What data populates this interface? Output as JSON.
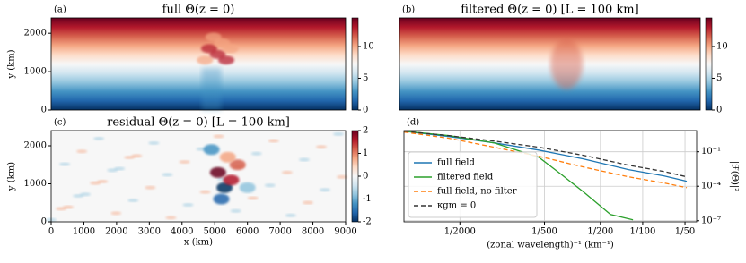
{
  "chart_data": [
    {
      "type": "heatmap",
      "panel": "(a)",
      "title": "full Θ(z = 0)",
      "ylabel": "y (km)",
      "xlim": [
        0,
        9000
      ],
      "ylim": [
        0,
        2400
      ],
      "yticks": [
        0,
        1000,
        2000
      ],
      "clim": [
        0,
        14.5
      ],
      "cticks": [
        0,
        5,
        10
      ]
    },
    {
      "type": "heatmap",
      "panel": "(b)",
      "title": "filtered Θ(z = 0) [L = 100 km]",
      "xlim": [
        0,
        9000
      ],
      "ylim": [
        0,
        2400
      ],
      "clim": [
        0,
        14.5
      ],
      "cticks": [
        0,
        5,
        10
      ]
    },
    {
      "type": "heatmap",
      "panel": "(c)",
      "title": "residual Θ(z = 0) [L = 100 km]",
      "ylabel": "y (km)",
      "xlabel": "x (km)",
      "xlim": [
        0,
        9000
      ],
      "ylim": [
        0,
        2400
      ],
      "yticks": [
        0,
        1000,
        2000
      ],
      "xticks": [
        0,
        1000,
        2000,
        3000,
        4000,
        5000,
        6000,
        7000,
        8000,
        9000
      ],
      "clim": [
        -2,
        2
      ],
      "cticks": [
        -2,
        -1,
        0,
        1,
        2
      ]
    },
    {
      "type": "line",
      "panel": "(d)",
      "xlabel": "(zonal wavelength)⁻¹ (km⁻¹)",
      "ylabel": "|ℱ(Θ)|²",
      "log_x": true,
      "log_y": true,
      "grid": true,
      "legend": "lower left",
      "xlim": [
        0.0002,
        0.0242
      ],
      "ylim": [
        8e-08,
        7
      ],
      "xticks": [
        {
          "value": 0.0005,
          "label": "1/2000"
        },
        {
          "value": 0.002,
          "label": "1/500"
        },
        {
          "value": 0.005,
          "label": "1/200"
        },
        {
          "value": 0.01,
          "label": "1/100"
        },
        {
          "value": 0.02,
          "label": "1/50"
        }
      ],
      "yticks": [
        {
          "value": 1e-07,
          "label": "10⁻⁷"
        },
        {
          "value": 0.0001,
          "label": "10⁻⁴"
        },
        {
          "value": 0.1,
          "label": "10⁻¹"
        }
      ],
      "series": [
        {
          "name": "full field",
          "color": "#1f77b4",
          "dash": "solid",
          "x": [
            0.000201,
            0.000419,
            0.000875,
            0.00182,
            0.0038,
            0.00792,
            0.01426,
            0.02057
          ],
          "values": [
            6.2,
            2.1,
            0.6,
            0.14,
            0.024,
            0.0028,
            0.00079,
            0.00027
          ]
        },
        {
          "name": "filtered field",
          "color": "#2ca02c",
          "dash": "solid",
          "x": [
            0.000201,
            0.000419,
            0.000875,
            0.00182,
            0.00263,
            0.0038,
            0.0059,
            0.00853
          ],
          "values": [
            6.2,
            2.5,
            0.6,
            0.034,
            0.0011,
            3.1e-05,
            3.5e-07,
            1.2e-07
          ]
        },
        {
          "name": "full field, no filter",
          "color": "#ff7f0e",
          "dash": "dashed",
          "x": [
            0.000201,
            0.000419,
            0.000875,
            0.00182,
            0.0038,
            0.00792,
            0.01426,
            0.02057
          ],
          "values": [
            5.2,
            1.5,
            0.25,
            0.041,
            0.0047,
            0.00066,
            0.00019,
            7.6e-05
          ]
        },
        {
          "name": "κgm = 0",
          "color": "#333333",
          "dash": "dashed",
          "x": [
            0.000201,
            0.000419,
            0.000875,
            0.00182,
            0.0038,
            0.00792,
            0.01426,
            0.02057
          ],
          "values": [
            6.2,
            2.5,
            0.86,
            0.25,
            0.049,
            0.0068,
            0.0019,
            0.00066
          ]
        }
      ]
    }
  ]
}
